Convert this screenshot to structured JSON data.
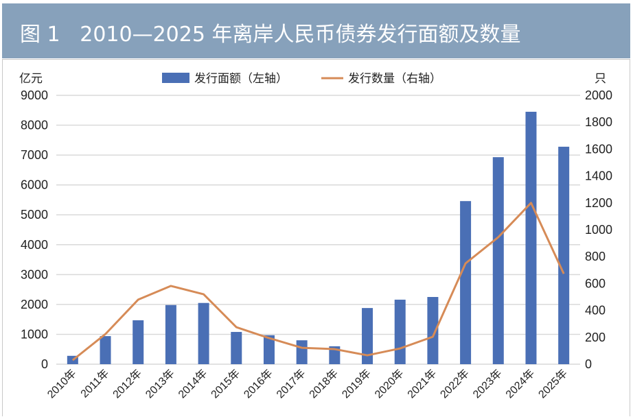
{
  "header": {
    "title": "图 1   2010—2025 年离岸人民币债券发行面额及数量"
  },
  "chart_data": {
    "type": "bar+line",
    "title": "图 1   2010—2025 年离岸人民币债券发行面额及数量",
    "categories": [
      "2010年",
      "2011年",
      "2012年",
      "2013年",
      "2014年",
      "2015年",
      "2016年",
      "2017年",
      "2018年",
      "2019年",
      "2020年",
      "2021年",
      "2022年",
      "2023年",
      "2024年",
      "2025年"
    ],
    "series": [
      {
        "name": "发行面额（左轴）",
        "type": "bar",
        "axis": "left",
        "color": "#4a6fb5",
        "values": [
          280,
          940,
          1470,
          1980,
          2050,
          1080,
          970,
          800,
          600,
          1880,
          2160,
          2250,
          5460,
          6930,
          8450,
          7280
        ]
      },
      {
        "name": "发行数量（右轴）",
        "type": "line",
        "axis": "right",
        "color": "#d68b57",
        "values": [
          30,
          224,
          480,
          582,
          520,
          275,
          194,
          122,
          112,
          66,
          117,
          204,
          750,
          945,
          1200,
          673
        ]
      }
    ],
    "ylabel_left": "亿元",
    "ylabel_right": "只",
    "ylim_left": [
      0,
      9000
    ],
    "ylim_right": [
      0,
      2000
    ],
    "yticks_left": [
      "0",
      "1000",
      "2000",
      "3000",
      "4000",
      "5000",
      "6000",
      "7000",
      "8000",
      "9000"
    ],
    "yticks_right": [
      "0",
      "200",
      "400",
      "600",
      "800",
      "1000",
      "1200",
      "1400",
      "1600",
      "1800",
      "2000"
    ],
    "legend": [
      "发行面额（左轴）",
      "发行数量（右轴）"
    ],
    "legend_placement": "top",
    "grid": true
  }
}
